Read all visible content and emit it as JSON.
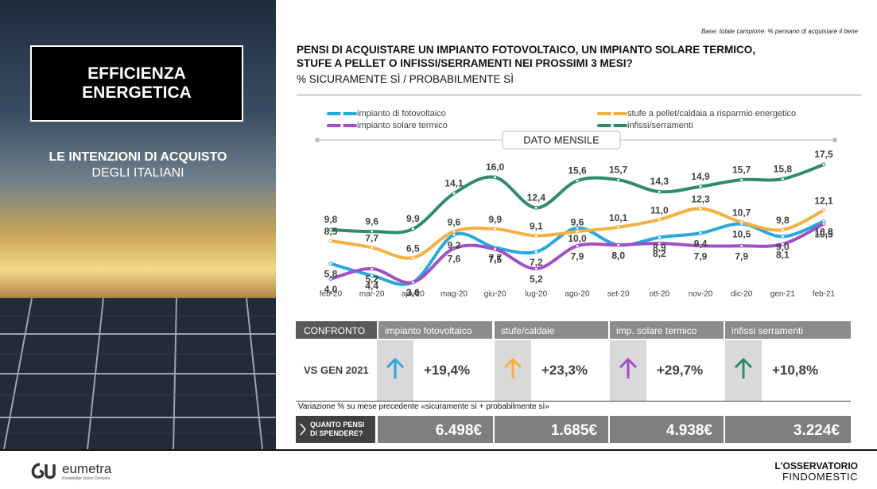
{
  "panel": {
    "title": "EFFICIENZA ENERGETICA",
    "subtitle_bold": "LE INTENZIONI DI ACQUISTO",
    "subtitle": "DEGLI ITALIANI"
  },
  "header": {
    "base_note": "Base: totale campione. % pensano di acquistare il bene",
    "title": "PENSI DI ACQUISTARE UN IMPIANTO FOTOVOLTAICO, UN IMPIANTO SOLARE TERMICO,  STUFE A PELLET O INFISSI/SERRAMENTI NEI PROSSIMI 3 MESI?",
    "subtitle": "% SICURAMENTE SÌ / PROBABILMENTE SÌ"
  },
  "chart_data": {
    "type": "line",
    "annotation": "DATO MENSILE",
    "categories": [
      "feb-20",
      "mar-20",
      "apr-20",
      "mag-20",
      "giu-20",
      "lug-20",
      "ago-20",
      "set-20",
      "ott-20",
      "nov-20",
      "dic-20",
      "gen-21",
      "feb-21"
    ],
    "series": [
      {
        "name": "impianto di fotovoltaico",
        "color": "#2aa8dc",
        "values": [
          5.8,
          4.4,
          3.6,
          9.2,
          7.7,
          7.2,
          10.0,
          8.0,
          8.9,
          9.4,
          10.5,
          9.0,
          10.8
        ],
        "value_labels": [
          "5,8",
          "4,4",
          "3,6",
          "9,2",
          "7,7",
          "7,2",
          "10,0",
          "8,0",
          "8,9",
          "9,4",
          "10,5",
          "9,0",
          "10,8"
        ]
      },
      {
        "name": "impianto solare termico",
        "color": "#a14fc5",
        "values": [
          4.0,
          5.2,
          3.6,
          7.6,
          7.5,
          5.2,
          7.9,
          8.0,
          8.2,
          7.9,
          7.9,
          8.1,
          10.5
        ],
        "value_labels": [
          "4,0",
          "5,2",
          "3,6",
          "7,6",
          "7,5",
          "5,2",
          "7,9",
          "8,0",
          "8,2",
          "7,9",
          "7,9",
          "8,1",
          "10,5"
        ]
      },
      {
        "name": "stufe a pellet/caldaia a risparmio energetico",
        "color": "#f5b042",
        "values": [
          8.5,
          7.7,
          6.5,
          9.6,
          9.9,
          9.1,
          9.6,
          10.1,
          11.0,
          12.3,
          10.7,
          9.8,
          12.1
        ],
        "value_labels": [
          "8,5",
          "7,7",
          "6,5",
          "9,6",
          "9,9",
          "9,1",
          "9,6",
          "10,1",
          "11,0",
          "12,3",
          "10,7",
          "9,8",
          "12,1"
        ]
      },
      {
        "name": "infissi/serramenti",
        "color": "#2e8b6e",
        "values": [
          9.8,
          9.6,
          9.9,
          14.1,
          16.0,
          12.4,
          15.6,
          15.7,
          14.3,
          14.9,
          15.7,
          15.8,
          17.5
        ],
        "value_labels": [
          "9,8",
          "9,6",
          "9,9",
          "14,1",
          "16,0",
          "12,4",
          "15,6",
          "15,7",
          "14,3",
          "14,9",
          "15,7",
          "15,8",
          "17,5"
        ]
      }
    ]
  },
  "comparison": {
    "header": "CONFRONTO",
    "columns": [
      "impianto fotovoltaico",
      "stufe/caldaie",
      "imp. solare termico",
      "infissi serramenti"
    ],
    "row_label": "VS GEN 2021",
    "values": [
      "+19,4%",
      "+23,3%",
      "+29,7%",
      "+10,8%"
    ],
    "note": "Variazione % su mese precedente «sicuramente sì + probabilmente sì»"
  },
  "spending": {
    "label": "QUANTO PENSI DI SPENDERE?",
    "values": [
      "6.498€",
      "1.685€",
      "4.938€",
      "3.224€"
    ]
  },
  "footer": {
    "brand": "eumetra",
    "tagline": "Knowledge Vision Decision",
    "observatory": "L'OSSERVATORIO",
    "sponsor": "FINDOMESTIC"
  }
}
